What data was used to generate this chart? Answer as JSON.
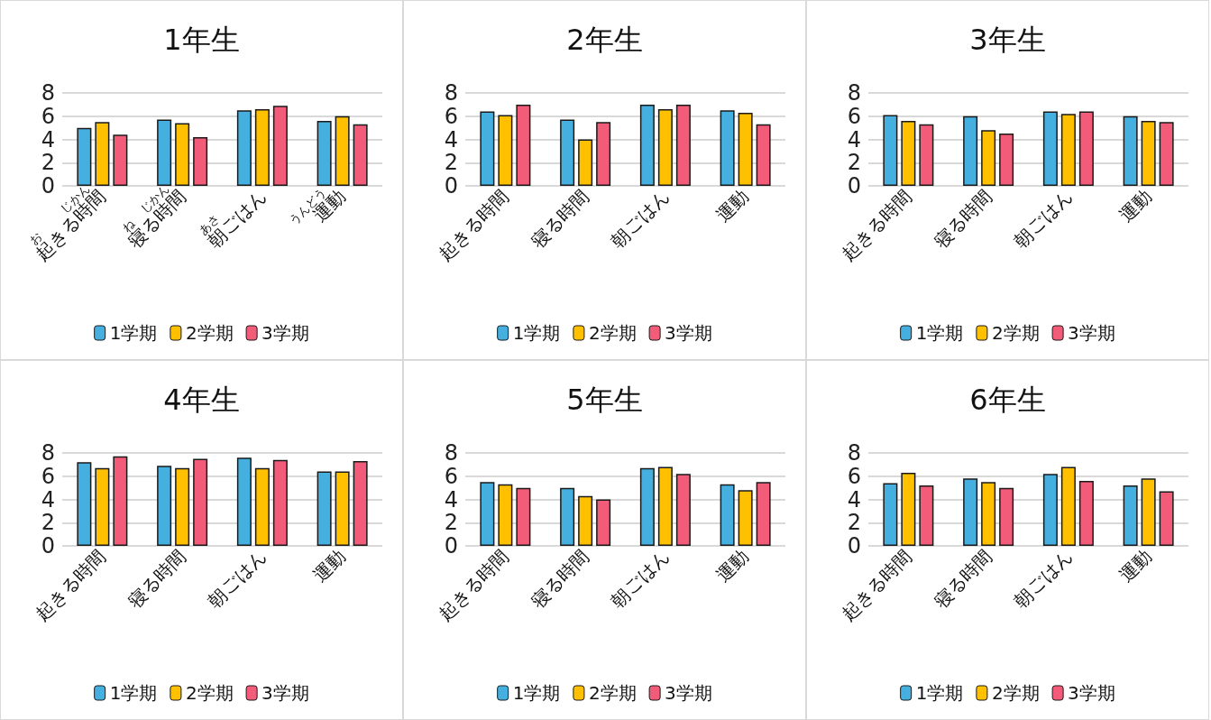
{
  "chart_data": [
    {
      "type": "bar",
      "title": "1年生",
      "categories": [
        "起きる時間",
        "寝る時間",
        "朝ごはん",
        "運動"
      ],
      "series": [
        {
          "name": "1学期",
          "color": "#45b0e0",
          "values": [
            5.0,
            5.7,
            6.5,
            5.6
          ]
        },
        {
          "name": "2学期",
          "color": "#ffc000",
          "values": [
            5.5,
            5.4,
            6.6,
            6.0
          ]
        },
        {
          "name": "3学期",
          "color": "#f25c78",
          "values": [
            4.4,
            4.2,
            6.9,
            5.3
          ]
        }
      ],
      "ylim": [
        0,
        8
      ],
      "yticks": [
        0,
        2,
        4,
        6,
        8
      ],
      "grid": "y",
      "legend": "bottom",
      "annotations": [
        "お",
        "じかん",
        "ね",
        "じかん",
        "あさ",
        "うんどう"
      ]
    },
    {
      "type": "bar",
      "title": "2年生",
      "categories": [
        "起きる時間",
        "寝る時間",
        "朝ごはん",
        "運動"
      ],
      "series": [
        {
          "name": "1学期",
          "color": "#45b0e0",
          "values": [
            6.4,
            5.7,
            7.0,
            6.5
          ]
        },
        {
          "name": "2学期",
          "color": "#ffc000",
          "values": [
            6.1,
            4.0,
            6.6,
            6.3
          ]
        },
        {
          "name": "3学期",
          "color": "#f25c78",
          "values": [
            7.0,
            5.5,
            7.0,
            5.3
          ]
        }
      ],
      "ylim": [
        0,
        8
      ],
      "yticks": [
        0,
        2,
        4,
        6,
        8
      ],
      "grid": "y",
      "legend": "bottom"
    },
    {
      "type": "bar",
      "title": "3年生",
      "categories": [
        "起きる時間",
        "寝る時間",
        "朝ごはん",
        "運動"
      ],
      "series": [
        {
          "name": "1学期",
          "color": "#45b0e0",
          "values": [
            6.1,
            6.0,
            6.4,
            6.0
          ]
        },
        {
          "name": "2学期",
          "color": "#ffc000",
          "values": [
            5.6,
            4.8,
            6.2,
            5.6
          ]
        },
        {
          "name": "3学期",
          "color": "#f25c78",
          "values": [
            5.3,
            4.5,
            6.4,
            5.5
          ]
        }
      ],
      "ylim": [
        0,
        8
      ],
      "yticks": [
        0,
        2,
        4,
        6,
        8
      ],
      "grid": "y",
      "legend": "bottom"
    },
    {
      "type": "bar",
      "title": "4年生",
      "categories": [
        "起きる時間",
        "寝る時間",
        "朝ごはん",
        "運動"
      ],
      "series": [
        {
          "name": "1学期",
          "color": "#45b0e0",
          "values": [
            7.2,
            6.9,
            7.6,
            6.4
          ]
        },
        {
          "name": "2学期",
          "color": "#ffc000",
          "values": [
            6.7,
            6.7,
            6.7,
            6.4
          ]
        },
        {
          "name": "3学期",
          "color": "#f25c78",
          "values": [
            7.7,
            7.5,
            7.4,
            7.3
          ]
        }
      ],
      "ylim": [
        0,
        8
      ],
      "yticks": [
        0,
        2,
        4,
        6,
        8
      ],
      "grid": "y",
      "legend": "bottom"
    },
    {
      "type": "bar",
      "title": "5年生",
      "categories": [
        "起きる時間",
        "寝る時間",
        "朝ごはん",
        "運動"
      ],
      "series": [
        {
          "name": "1学期",
          "color": "#45b0e0",
          "values": [
            5.5,
            5.0,
            6.7,
            5.3
          ]
        },
        {
          "name": "2学期",
          "color": "#ffc000",
          "values": [
            5.3,
            4.3,
            6.8,
            4.8
          ]
        },
        {
          "name": "3学期",
          "color": "#f25c78",
          "values": [
            5.0,
            4.0,
            6.2,
            5.5
          ]
        }
      ],
      "ylim": [
        0,
        8
      ],
      "yticks": [
        0,
        2,
        4,
        6,
        8
      ],
      "grid": "y",
      "legend": "bottom"
    },
    {
      "type": "bar",
      "title": "6年生",
      "categories": [
        "起きる時間",
        "寝る時間",
        "朝ごはん",
        "運動"
      ],
      "series": [
        {
          "name": "1学期",
          "color": "#45b0e0",
          "values": [
            5.4,
            5.8,
            6.2,
            5.2
          ]
        },
        {
          "name": "2学期",
          "color": "#ffc000",
          "values": [
            6.3,
            5.5,
            6.8,
            5.8
          ]
        },
        {
          "name": "3学期",
          "color": "#f25c78",
          "values": [
            5.2,
            5.0,
            5.6,
            4.7
          ]
        }
      ],
      "ylim": [
        0,
        8
      ],
      "yticks": [
        0,
        2,
        4,
        6,
        8
      ],
      "grid": "y",
      "legend": "bottom"
    }
  ]
}
